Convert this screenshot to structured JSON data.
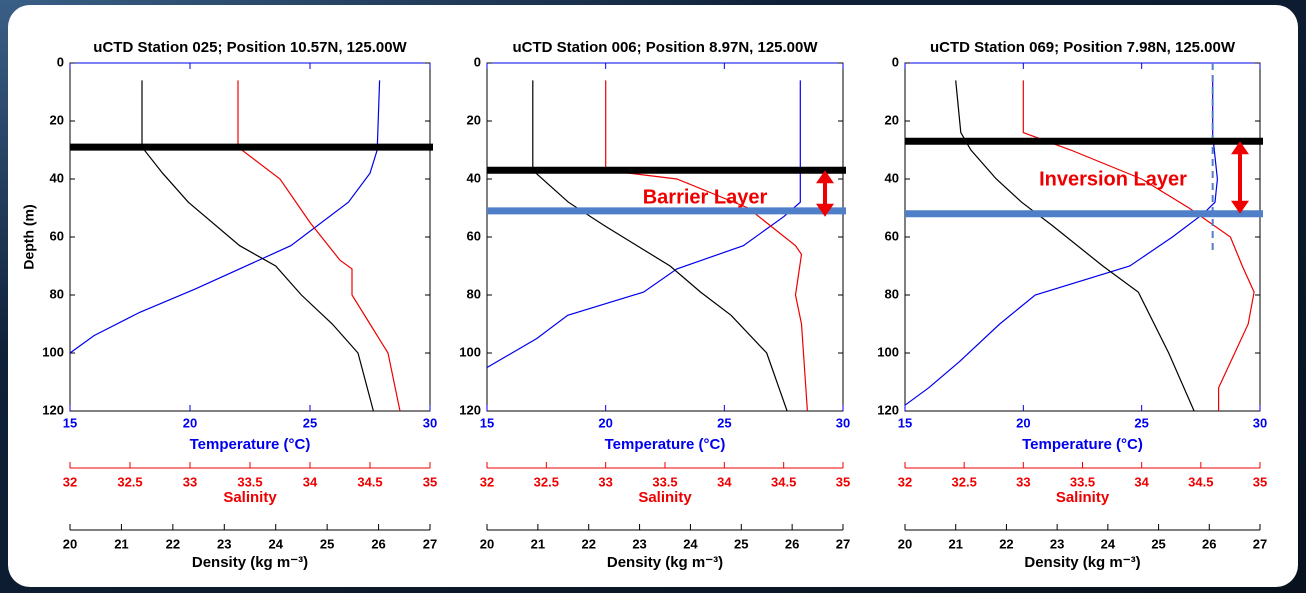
{
  "chart_data": [
    {
      "type": "line",
      "title": "uCTD Station 025; Position 10.57N, 125.00W",
      "ylabel": "Depth (m)",
      "ylim": [
        0,
        120
      ],
      "yticks": [
        0,
        20,
        40,
        60,
        80,
        100,
        120
      ],
      "xaxes": [
        {
          "label": "Temperature (°C)",
          "color": "#0000ee",
          "xlim": [
            15,
            30
          ],
          "xticks": [
            15,
            20,
            25,
            30
          ]
        },
        {
          "label": "Salinity",
          "color": "#ee0000",
          "xlim": [
            32,
            35
          ],
          "xticks": [
            32,
            32.5,
            33,
            33.5,
            34,
            34.5,
            35
          ]
        },
        {
          "label": "Density (kg m⁻³)",
          "color": "#000000",
          "xlim": [
            20,
            27
          ],
          "xticks": [
            20,
            21,
            22,
            23,
            24,
            25,
            26,
            27
          ]
        }
      ],
      "series": [
        {
          "axis": 0,
          "color": "#0000ee",
          "depth": [
            6,
            30,
            38,
            48,
            63,
            78,
            86,
            94,
            100
          ],
          "values": [
            27.9,
            27.8,
            27.5,
            26.6,
            24.2,
            20.2,
            17.9,
            16.0,
            15.0
          ]
        },
        {
          "axis": 1,
          "color": "#ee0000",
          "depth": [
            6,
            29,
            40,
            55,
            68,
            71,
            80,
            90,
            100,
            120
          ],
          "values": [
            33.4,
            33.4,
            33.75,
            34.0,
            34.25,
            34.35,
            34.35,
            34.5,
            34.65,
            34.75
          ]
        },
        {
          "axis": 2,
          "color": "#000000",
          "depth": [
            6,
            29,
            38,
            48,
            63,
            70,
            80,
            90,
            100,
            120
          ],
          "values": [
            21.4,
            21.4,
            21.8,
            22.3,
            23.3,
            24.0,
            24.5,
            25.1,
            25.6,
            25.9
          ]
        }
      ],
      "hlines": [
        {
          "depth": 29,
          "color": "#000000"
        }
      ]
    },
    {
      "type": "line",
      "title": "uCTD Station 006; Position 8.97N, 125.00W",
      "ylim": [
        0,
        120
      ],
      "yticks": [
        0,
        20,
        40,
        60,
        80,
        100,
        120
      ],
      "xaxes": [
        {
          "label": "Temperature (°C)",
          "color": "#0000ee",
          "xlim": [
            15,
            30
          ],
          "xticks": [
            15,
            20,
            25,
            30
          ]
        },
        {
          "label": "Salinity",
          "color": "#ee0000",
          "xlim": [
            32,
            35
          ],
          "xticks": [
            32,
            32.5,
            33,
            33.5,
            34,
            34.5,
            35
          ]
        },
        {
          "label": "Density (kg m⁻³)",
          "color": "#000000",
          "xlim": [
            20,
            27
          ],
          "xticks": [
            20,
            21,
            22,
            23,
            24,
            25,
            26,
            27
          ]
        }
      ],
      "series": [
        {
          "axis": 0,
          "color": "#0000ee",
          "depth": [
            6,
            48,
            53,
            63,
            71,
            79,
            87,
            95,
            105
          ],
          "values": [
            28.2,
            28.2,
            27.5,
            25.8,
            23.0,
            21.6,
            18.4,
            17.1,
            15.0
          ]
        },
        {
          "axis": 1,
          "color": "#ee0000",
          "depth": [
            6,
            37,
            40,
            50,
            63,
            66,
            80,
            90,
            120
          ],
          "values": [
            33.0,
            33.0,
            33.6,
            34.2,
            34.6,
            34.65,
            34.6,
            34.65,
            34.7
          ]
        },
        {
          "axis": 2,
          "color": "#000000",
          "depth": [
            6,
            37,
            48,
            56,
            70,
            79,
            87,
            100,
            120
          ],
          "values": [
            20.9,
            20.9,
            21.6,
            22.3,
            23.6,
            24.2,
            24.8,
            25.5,
            25.9
          ]
        }
      ],
      "hlines": [
        {
          "depth": 37,
          "color": "#000000"
        },
        {
          "depth": 51,
          "color": "#4f7fc9"
        }
      ],
      "arrow": {
        "from": 37,
        "to": 53
      },
      "annotation": "Barrier Layer"
    },
    {
      "type": "line",
      "title": "uCTD Station 069; Position 7.98N, 125.00W",
      "ylim": [
        0,
        120
      ],
      "yticks": [
        0,
        20,
        40,
        60,
        80,
        100,
        120
      ],
      "xaxes": [
        {
          "label": "Temperature (°C)",
          "color": "#0000ee",
          "xlim": [
            15,
            30
          ],
          "xticks": [
            15,
            20,
            25,
            30
          ]
        },
        {
          "label": "Salinity",
          "color": "#ee0000",
          "xlim": [
            32,
            35
          ],
          "xticks": [
            32,
            32.5,
            33,
            33.5,
            34,
            34.5,
            35
          ]
        },
        {
          "label": "Density (kg m⁻³)",
          "color": "#000000",
          "xlim": [
            20,
            27
          ],
          "xticks": [
            20,
            21,
            22,
            23,
            24,
            25,
            26,
            27
          ]
        }
      ],
      "series": [
        {
          "axis": 0,
          "color": "#0000ee",
          "depth": [
            6,
            25,
            40,
            48,
            52,
            60,
            70,
            80,
            90,
            103,
            112,
            118
          ],
          "values": [
            28.0,
            28.0,
            28.2,
            28.1,
            27.6,
            26.3,
            24.5,
            20.5,
            19.0,
            17.3,
            16.0,
            15.0
          ]
        },
        {
          "axis": 1,
          "color": "#ee0000",
          "depth": [
            6,
            24,
            30,
            40,
            50,
            60,
            70,
            79,
            90,
            112,
            120
          ],
          "values": [
            33.0,
            33.0,
            33.4,
            34.0,
            34.4,
            34.75,
            34.85,
            34.95,
            34.9,
            34.65,
            34.65
          ]
        },
        {
          "axis": 2,
          "color": "#000000",
          "depth": [
            6,
            24,
            30,
            40,
            48,
            56,
            70,
            79,
            100,
            120
          ],
          "values": [
            21.0,
            21.1,
            21.3,
            21.8,
            22.3,
            22.9,
            23.9,
            24.6,
            25.2,
            25.7
          ]
        }
      ],
      "hlines": [
        {
          "depth": 27,
          "color": "#000000"
        },
        {
          "depth": 52,
          "color": "#4f7fc9"
        }
      ],
      "vline": {
        "value": 28,
        "from": 0,
        "to": 65
      },
      "arrow": {
        "from": 27,
        "to": 52
      },
      "annotation": "Inversion Layer"
    }
  ]
}
